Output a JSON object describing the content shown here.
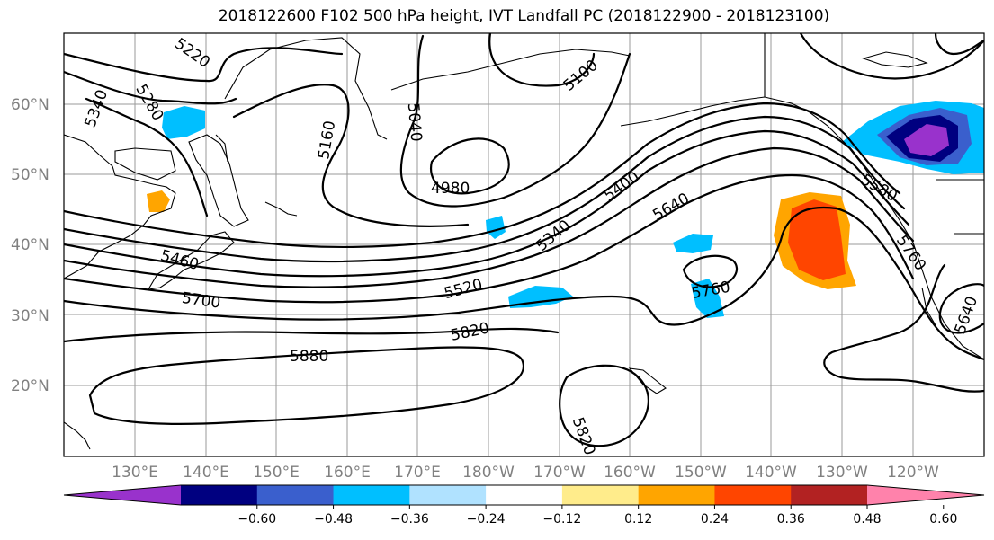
{
  "title": "2018122600 F102 500 hPa height, IVT Landfall PC (2018122900 - 2018123100)",
  "lat_labels": [
    "60°N",
    "50°N",
    "40°N",
    "30°N",
    "20°N"
  ],
  "lon_labels": [
    "130°E",
    "140°E",
    "150°E",
    "160°E",
    "170°E",
    "180°W",
    "170°W",
    "160°W",
    "150°W",
    "140°W",
    "130°W",
    "120°W"
  ],
  "contour_labels": [
    "5220",
    "5280",
    "5340",
    "5160",
    "5040",
    "5100",
    "4980",
    "5400",
    "5340",
    "5640",
    "5580",
    "5460",
    "5700",
    "5520",
    "5820",
    "5760",
    "5760",
    "5640",
    "5880",
    "5820"
  ],
  "colorbar": {
    "ticks": [
      "−0.60",
      "−0.48",
      "−0.36",
      "−0.24",
      "−0.12",
      "0.12",
      "0.24",
      "0.36",
      "0.48",
      "0.60"
    ],
    "colors": [
      "#9932cc",
      "#000080",
      "#3a5fcd",
      "#00bfff",
      "#b0e2ff",
      "#ffffff",
      "#ffec8b",
      "#ffa500",
      "#ff4500",
      "#b22222",
      "#ff82ab"
    ]
  }
}
